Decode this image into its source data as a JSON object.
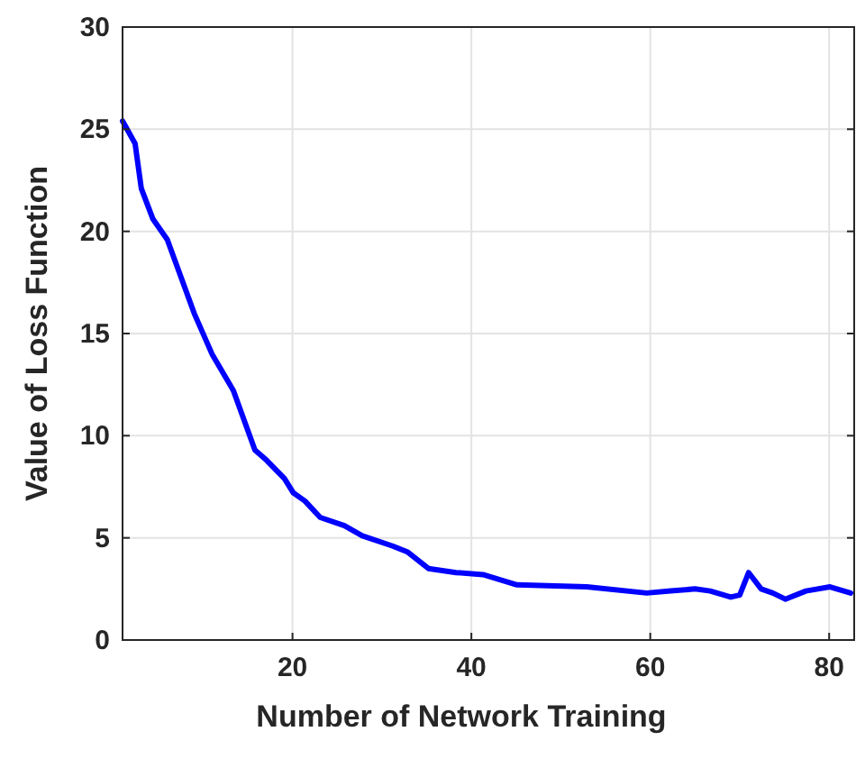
{
  "chart_data": {
    "type": "line",
    "xlabel": "Number of Network Training",
    "ylabel": "Value of Loss Function",
    "xlim": [
      1,
      82.8
    ],
    "ylim": [
      0,
      30
    ],
    "xticks": [
      20,
      40,
      60,
      80
    ],
    "yticks": [
      0,
      5,
      10,
      15,
      20,
      25,
      30
    ],
    "grid": true,
    "line_style": "solid",
    "marker": "none",
    "series": [
      {
        "color": "#0000ff",
        "x": [
          1,
          2.4,
          3.1,
          4.4,
          6,
          9,
          11,
          13.4,
          15.8,
          17.1,
          19.1,
          20.1,
          21.4,
          23.1,
          25.8,
          27.8,
          31.2,
          32.9,
          35.2,
          38.3,
          41.3,
          45.1,
          52.9,
          59.6,
          62.3,
          65,
          66.7,
          69,
          70,
          71,
          72.4,
          73.7,
          75.1,
          77.4,
          80.1,
          82.4
        ],
        "values": [
          25.4,
          24.3,
          22.1,
          20.6,
          19.6,
          16.0,
          14.0,
          12.2,
          9.3,
          8.8,
          7.9,
          7.2,
          6.8,
          6.0,
          5.6,
          5.1,
          4.6,
          4.3,
          3.5,
          3.3,
          3.2,
          2.7,
          2.6,
          2.3,
          2.4,
          2.5,
          2.4,
          2.1,
          2.2,
          3.3,
          2.5,
          2.3,
          2.0,
          2.4,
          2.6,
          2.3
        ]
      }
    ]
  }
}
